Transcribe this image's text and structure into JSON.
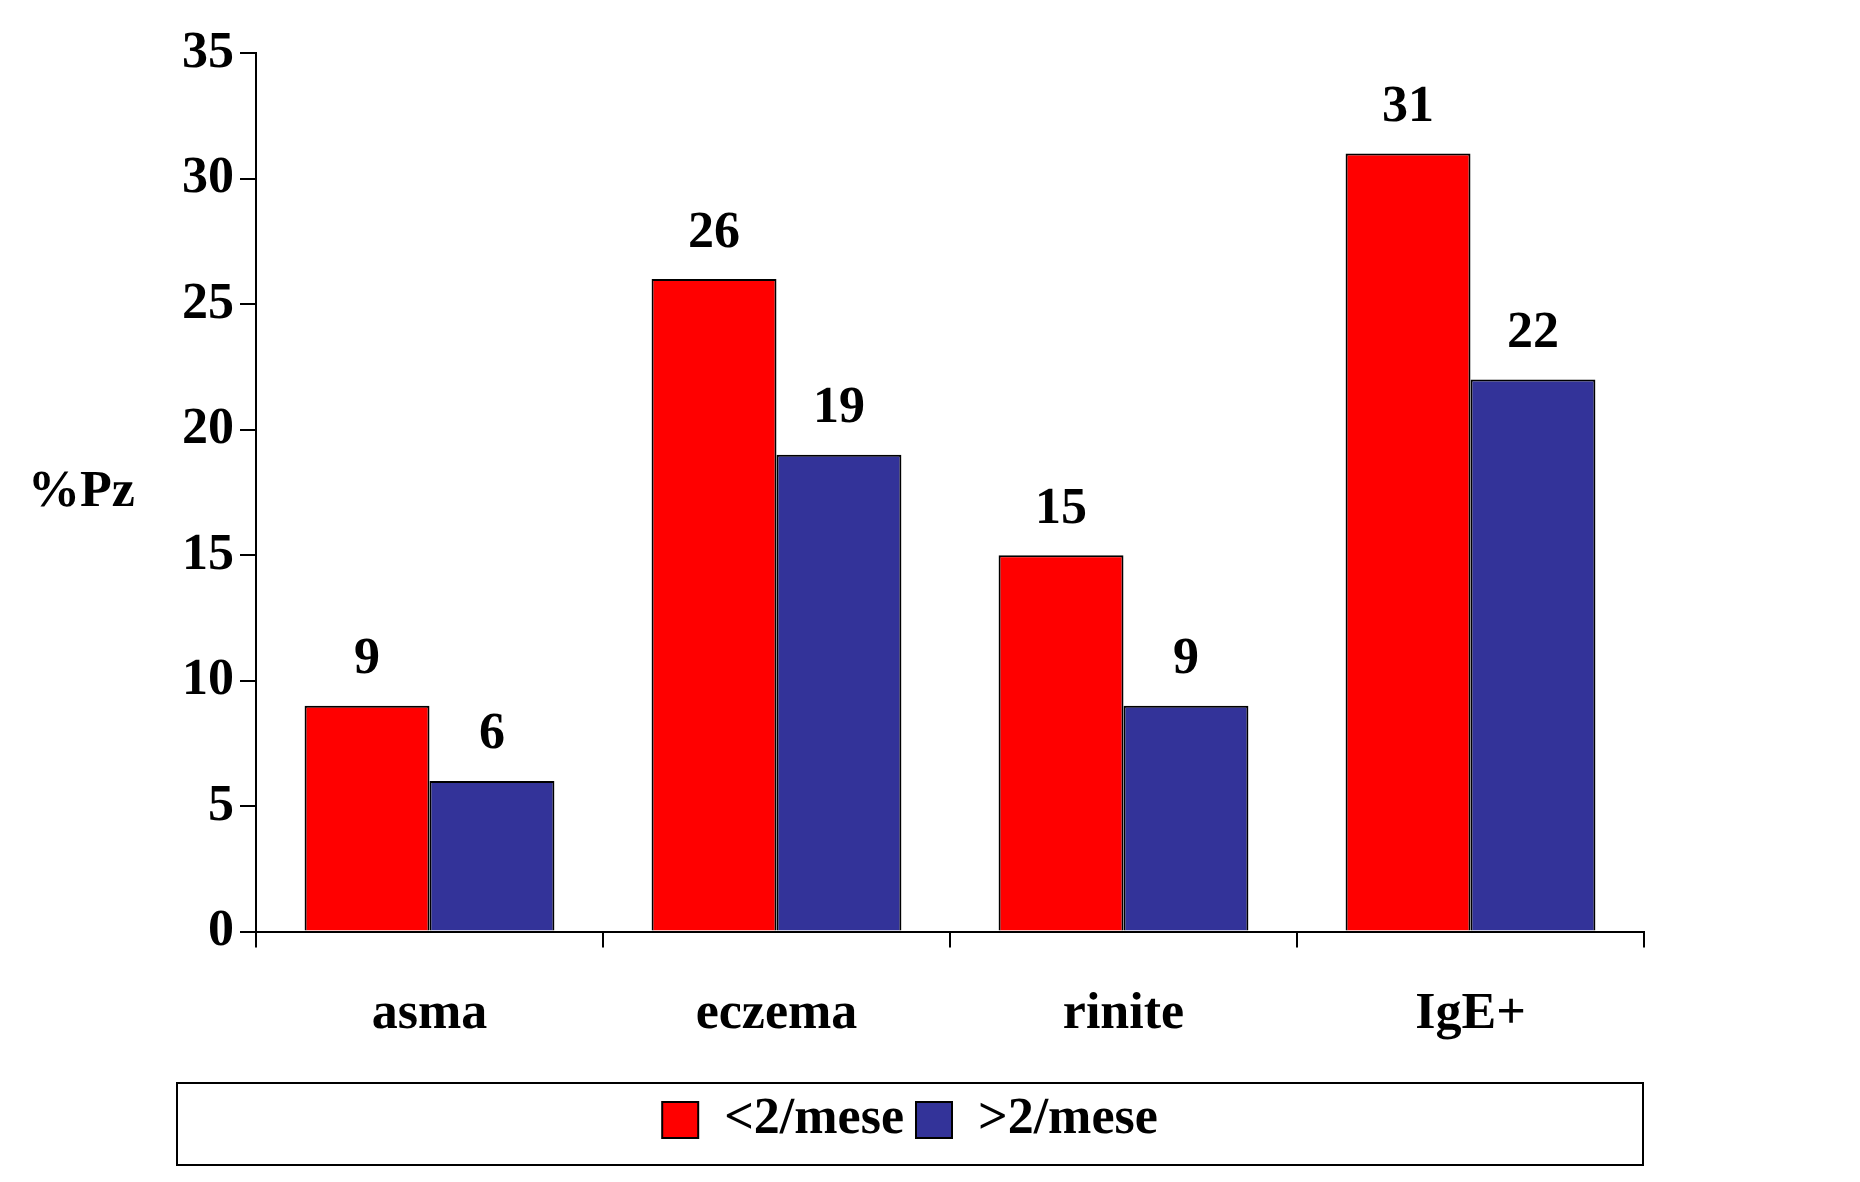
{
  "chart_data": {
    "type": "bar",
    "ylabel": "%Pz",
    "categories": [
      "asma",
      "eczema",
      "rinite",
      "IgE+"
    ],
    "series": [
      {
        "name": "<2/mese",
        "color": "#ff0000",
        "values": [
          9,
          26,
          15,
          31
        ]
      },
      {
        "name": ">2/mese",
        "color": "#333399",
        "values": [
          6,
          19,
          9,
          22
        ]
      }
    ],
    "ylim": [
      0,
      35
    ],
    "yticks": [
      0,
      5,
      10,
      15,
      20,
      25,
      30,
      35
    ],
    "grid": false,
    "legend": "bottom",
    "data_labels": true
  }
}
